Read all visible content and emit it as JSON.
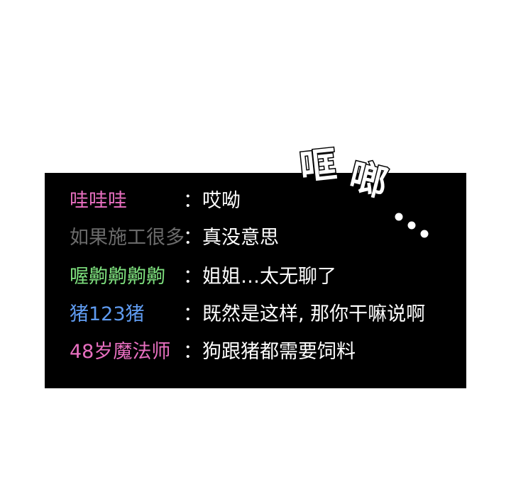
{
  "chat": {
    "messages": [
      {
        "user": "哇哇哇",
        "text": "：哎呦",
        "user_color": "#e86fc0"
      },
      {
        "user": "如果施工很多",
        "text": "：真没意思",
        "user_color": "#6b6b6b"
      },
      {
        "user": "喔齁齁齁齁",
        "text": "：姐姐…太无聊了",
        "user_color": "#7ee07e"
      },
      {
        "user": "猪123猪",
        "text": "：既然是这样, 那你干嘛说啊",
        "user_color": "#5f9bf0"
      },
      {
        "user": "48岁魔法师",
        "text": "：狗跟猪都需要饲料",
        "user_color": "#e86fc0"
      }
    ]
  },
  "sound_effect": {
    "char1": "哐",
    "char2": "啷"
  },
  "colors": {
    "panel_background": "#000000",
    "page_background": "#ffffff",
    "message_text": "#ffffff"
  }
}
